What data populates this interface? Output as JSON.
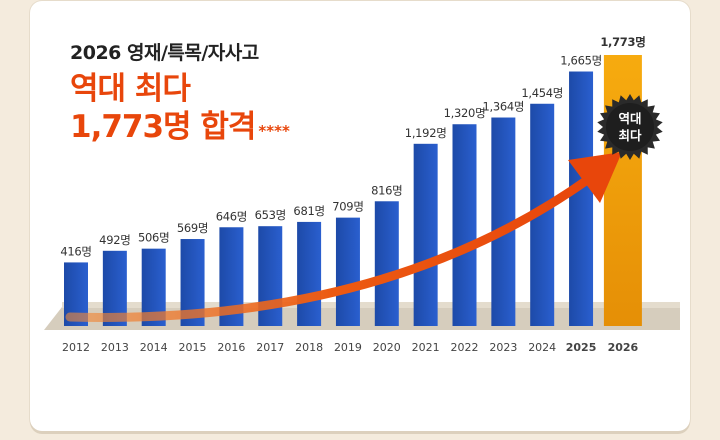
{
  "header": {
    "subtitle": "2026 영재/특목/자사고",
    "headline_line1": "역대 최다",
    "headline_line2": "1,773명 합격",
    "asterisks": "****"
  },
  "badge": {
    "line1": "역대",
    "line2": "최다"
  },
  "colors": {
    "bar": "#1f4fb8",
    "highlight_bar": "#f1a20d",
    "accent": "#e8460b",
    "platform": "#d6cdbd",
    "badge": "#2a2a2a"
  },
  "chart_data": {
    "type": "bar",
    "title": "2026 영재/특목/자사고 역대 최다 1,773명 합격",
    "categories": [
      "2012",
      "2013",
      "2014",
      "2015",
      "2016",
      "2017",
      "2018",
      "2019",
      "2020",
      "2021",
      "2022",
      "2023",
      "2024",
      "2025",
      "2026"
    ],
    "values": [
      416,
      492,
      506,
      569,
      646,
      653,
      681,
      709,
      816,
      1192,
      1320,
      1364,
      1454,
      1665,
      1773
    ],
    "data_labels": [
      "416명",
      "492명",
      "506명",
      "569명",
      "646명",
      "653명",
      "681명",
      "709명",
      "816명",
      "1,192명",
      "1,320명",
      "1,364명",
      "1,454명",
      "1,665명",
      "1,773명"
    ],
    "highlight_index": 14,
    "unit": "명",
    "xlabel": "",
    "ylabel": "",
    "ylim": [
      0,
      1773
    ]
  }
}
